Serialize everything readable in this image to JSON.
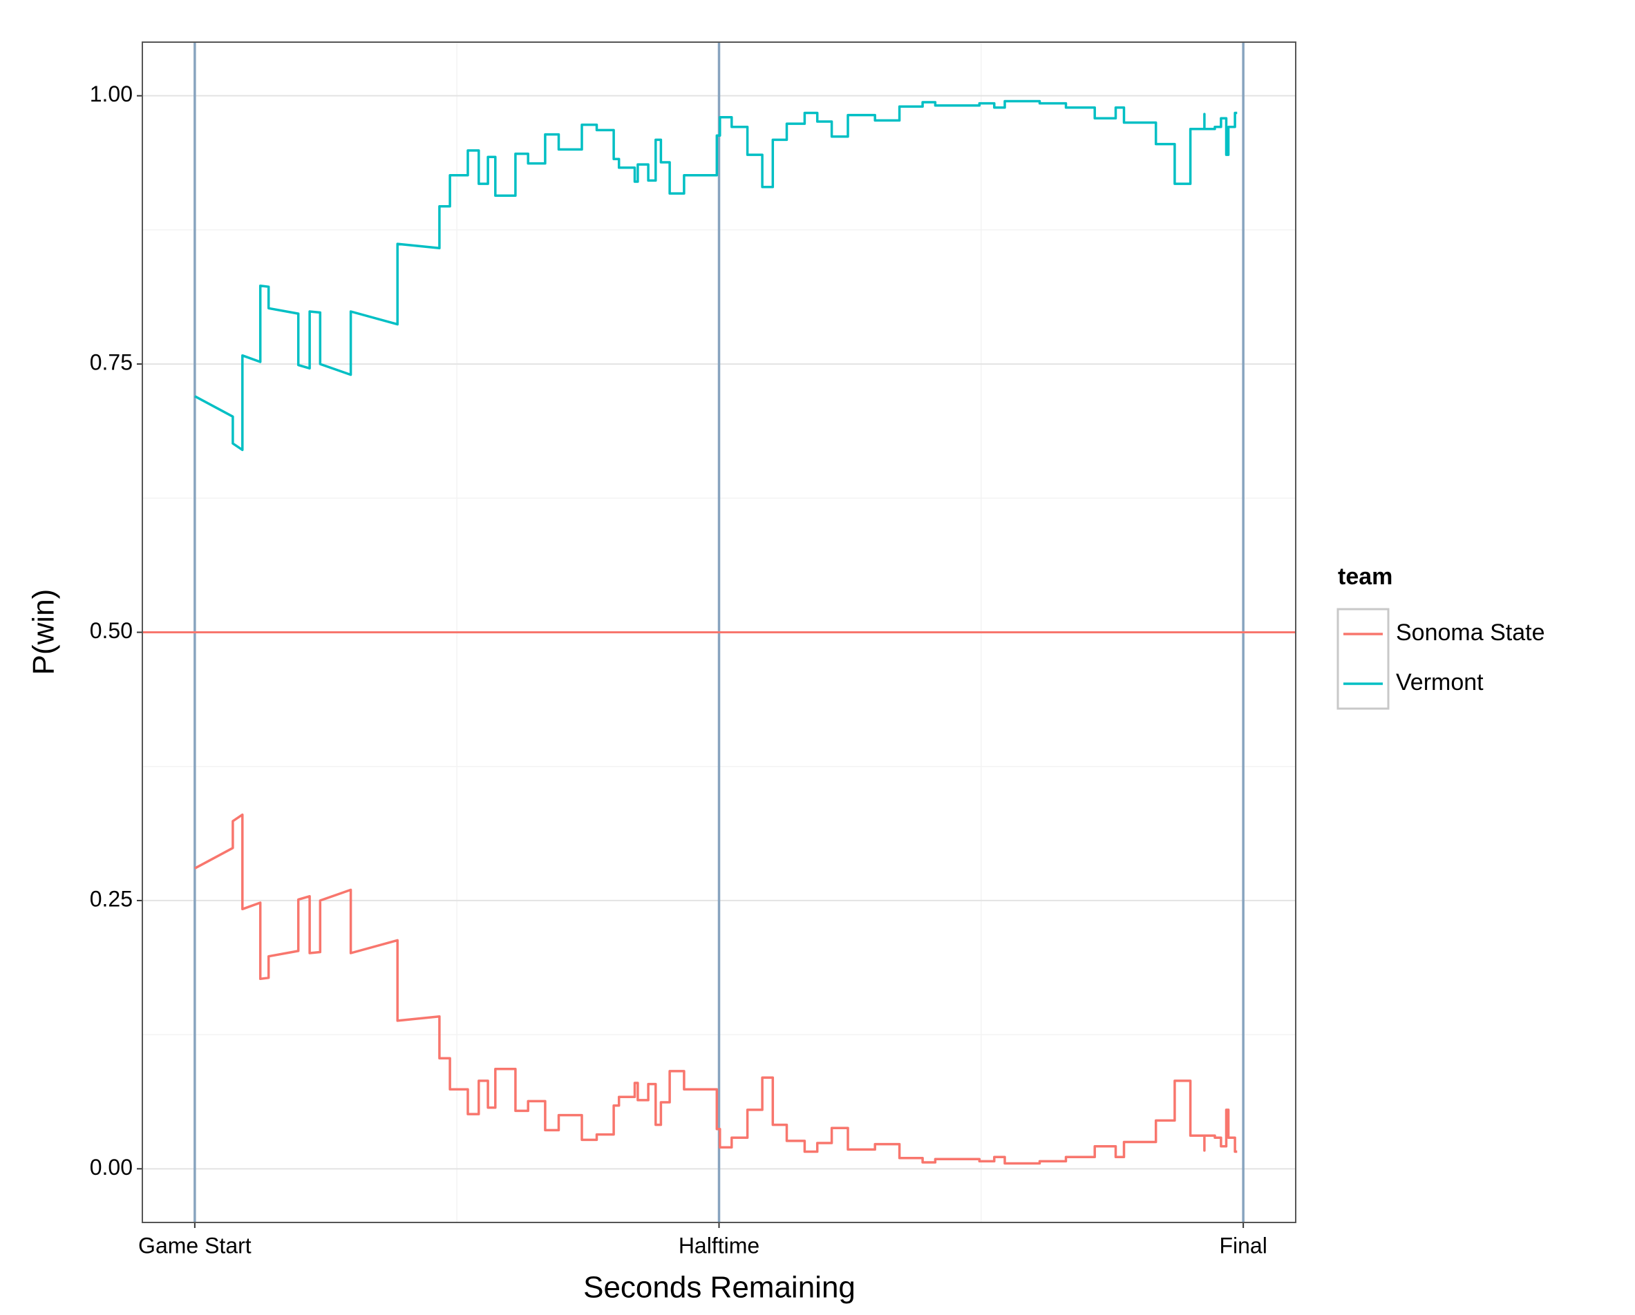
{
  "chart_data": {
    "type": "line",
    "x_label": "Seconds Remaining",
    "y_label": "P(win)",
    "legend_title": "team",
    "xlim": [
      2520,
      -120
    ],
    "xticks": [
      {
        "value": 2400,
        "label": "Game Start"
      },
      {
        "value": 1200,
        "label": "Halftime"
      },
      {
        "value": 0,
        "label": "Final"
      }
    ],
    "xminor": [
      1800,
      600
    ],
    "ylim": [
      -0.05,
      1.05
    ],
    "yticks": [
      {
        "value": 0,
        "label": "0.00"
      },
      {
        "value": 0.25,
        "label": "0.25"
      },
      {
        "value": 0.5,
        "label": "0.50"
      },
      {
        "value": 0.75,
        "label": "0.75"
      },
      {
        "value": 1,
        "label": "1.00"
      }
    ],
    "yminor": [
      0.125,
      0.375,
      0.625,
      0.875
    ],
    "grid": true,
    "legend": "right",
    "hline": {
      "value": 0.5,
      "color": "#f8766d"
    },
    "vlines": {
      "values": [
        2400,
        1200,
        0
      ],
      "color": "#88a4bf"
    },
    "x": [
      2400,
      2313,
      2313,
      2291,
      2291,
      2250,
      2250,
      2231,
      2231,
      2163,
      2163,
      2137,
      2137,
      2113,
      2113,
      2043,
      2043,
      1936,
      1936,
      1840,
      1840,
      1816,
      1816,
      1775,
      1775,
      1750,
      1750,
      1729,
      1729,
      1712,
      1712,
      1666,
      1666,
      1637,
      1637,
      1598,
      1598,
      1567,
      1567,
      1514,
      1514,
      1480,
      1480,
      1441,
      1441,
      1429,
      1429,
      1393,
      1393,
      1386,
      1386,
      1362,
      1362,
      1345,
      1345,
      1333,
      1333,
      1313,
      1313,
      1280,
      1280,
      1205,
      1205,
      1198,
      1198,
      1171,
      1171,
      1135,
      1135,
      1101,
      1101,
      1077,
      1077,
      1045,
      1045,
      1004,
      1004,
      975,
      975,
      942,
      942,
      905,
      905,
      843,
      843,
      787,
      787,
      734,
      734,
      705,
      705,
      604,
      604,
      570,
      570,
      546,
      546,
      466,
      466,
      406,
      406,
      340,
      340,
      292,
      292,
      273,
      273,
      200,
      200,
      157,
      157,
      121,
      121,
      89,
      89,
      89,
      65,
      65,
      51,
      51,
      39,
      39,
      34,
      34,
      19,
      19,
      14
    ],
    "series": [
      {
        "name": "Sonoma State",
        "color": "#f8766d",
        "values": [
          0.28,
          0.299,
          0.324,
          0.33,
          0.242,
          0.248,
          0.177,
          0.178,
          0.198,
          0.203,
          0.251,
          0.254,
          0.201,
          0.202,
          0.25,
          0.26,
          0.201,
          0.213,
          0.138,
          0.142,
          0.103,
          0.103,
          0.074,
          0.074,
          0.051,
          0.051,
          0.082,
          0.082,
          0.057,
          0.057,
          0.093,
          0.093,
          0.054,
          0.054,
          0.063,
          0.063,
          0.036,
          0.036,
          0.05,
          0.05,
          0.027,
          0.027,
          0.032,
          0.032,
          0.059,
          0.059,
          0.067,
          0.067,
          0.08,
          0.08,
          0.064,
          0.064,
          0.079,
          0.079,
          0.041,
          0.041,
          0.062,
          0.062,
          0.091,
          0.091,
          0.074,
          0.074,
          0.037,
          0.037,
          0.02,
          0.02,
          0.029,
          0.029,
          0.055,
          0.055,
          0.085,
          0.085,
          0.041,
          0.041,
          0.026,
          0.026,
          0.016,
          0.016,
          0.024,
          0.024,
          0.038,
          0.038,
          0.018,
          0.018,
          0.023,
          0.023,
          0.01,
          0.01,
          0.006,
          0.006,
          0.009,
          0.009,
          0.007,
          0.007,
          0.011,
          0.011,
          0.005,
          0.005,
          0.007,
          0.007,
          0.011,
          0.011,
          0.021,
          0.021,
          0.011,
          0.011,
          0.025,
          0.025,
          0.045,
          0.045,
          0.082,
          0.082,
          0.031,
          0.031,
          0.017,
          0.031,
          0.031,
          0.029,
          0.029,
          0.021,
          0.021,
          0.055,
          0.055,
          0.029,
          0.029,
          0.016,
          0.016
        ]
      },
      {
        "name": "Vermont",
        "color": "#00bfc4",
        "values": [
          0.72,
          0.701,
          0.676,
          0.67,
          0.758,
          0.752,
          0.823,
          0.822,
          0.802,
          0.797,
          0.749,
          0.746,
          0.799,
          0.798,
          0.75,
          0.74,
          0.799,
          0.787,
          0.862,
          0.858,
          0.897,
          0.897,
          0.926,
          0.926,
          0.949,
          0.949,
          0.918,
          0.918,
          0.943,
          0.943,
          0.907,
          0.907,
          0.946,
          0.946,
          0.937,
          0.937,
          0.964,
          0.964,
          0.95,
          0.95,
          0.973,
          0.973,
          0.968,
          0.968,
          0.941,
          0.941,
          0.933,
          0.933,
          0.92,
          0.92,
          0.936,
          0.936,
          0.921,
          0.921,
          0.959,
          0.959,
          0.938,
          0.938,
          0.909,
          0.909,
          0.926,
          0.926,
          0.963,
          0.963,
          0.98,
          0.98,
          0.971,
          0.971,
          0.945,
          0.945,
          0.915,
          0.915,
          0.959,
          0.959,
          0.974,
          0.974,
          0.984,
          0.984,
          0.976,
          0.976,
          0.962,
          0.962,
          0.982,
          0.982,
          0.977,
          0.977,
          0.99,
          0.99,
          0.994,
          0.994,
          0.991,
          0.991,
          0.993,
          0.993,
          0.989,
          0.989,
          0.995,
          0.995,
          0.993,
          0.993,
          0.989,
          0.989,
          0.979,
          0.979,
          0.989,
          0.989,
          0.975,
          0.975,
          0.955,
          0.955,
          0.918,
          0.918,
          0.969,
          0.969,
          0.983,
          0.969,
          0.969,
          0.971,
          0.971,
          0.979,
          0.979,
          0.945,
          0.945,
          0.971,
          0.971,
          0.984,
          0.984
        ]
      }
    ]
  }
}
